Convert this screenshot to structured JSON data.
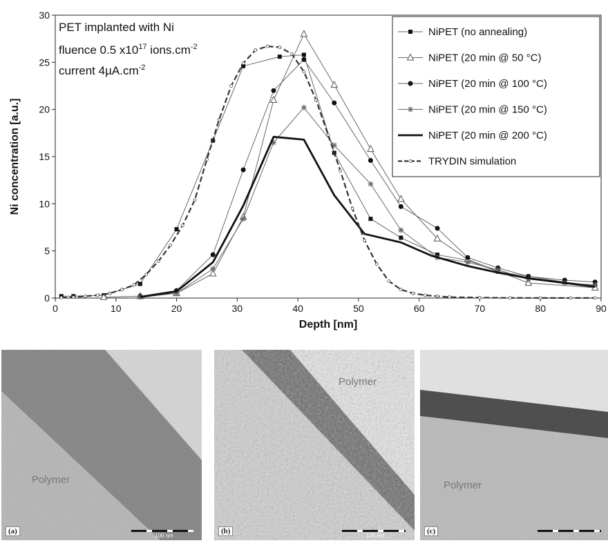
{
  "chart_data": {
    "type": "line",
    "xlabel": "Depth [nm]",
    "ylabel": "Ni concentration [a.u.]",
    "xlim": [
      0,
      90
    ],
    "ylim": [
      0,
      30
    ],
    "xticks": [
      "0",
      "10",
      "20",
      "30",
      "40",
      "50",
      "60",
      "70",
      "80",
      "90"
    ],
    "yticks": [
      "0",
      "5",
      "10",
      "15",
      "20",
      "25",
      "30"
    ],
    "grid": false,
    "legend_position": "top-right",
    "annotation": {
      "line1": "PET implanted with Ni",
      "line2_prefix": "fluence 0.5 x10",
      "line2_sup": "17",
      "line2_suffix": " ions.cm",
      "line2_sup2": "-2",
      "line3_prefix": "current 4",
      "line3_mu": "µ",
      "line3_suffix": "A.cm",
      "line3_sup": "-2"
    },
    "series": [
      {
        "name": "NiPET (no annealing)",
        "marker": "square",
        "style": "thin",
        "x": [
          1,
          3,
          8,
          14,
          20,
          26,
          31,
          37,
          41,
          46,
          52,
          57,
          63,
          68,
          73,
          78,
          84,
          89
        ],
        "y": [
          0.2,
          0.2,
          0.3,
          1.5,
          7.3,
          16.7,
          24.6,
          25.6,
          25.8,
          15.4,
          8.4,
          6.4,
          4.6,
          4.0,
          2.8,
          2.3,
          1.7,
          1.3
        ]
      },
      {
        "name": "NiPET (20 min @ 50 °C)",
        "marker": "triangle",
        "style": "thin",
        "x": [
          8,
          14,
          20,
          26,
          31,
          36,
          41,
          46,
          52,
          57,
          63,
          68,
          78,
          89
        ],
        "y": [
          0.1,
          0.2,
          0.5,
          2.6,
          8.6,
          21.0,
          28.0,
          22.6,
          15.8,
          10.5,
          6.3,
          4.1,
          1.6,
          1.1
        ]
      },
      {
        "name": "NiPET (20 min @ 100 °C)",
        "marker": "circle",
        "style": "thin",
        "x": [
          14,
          20,
          26,
          31,
          36,
          41,
          46,
          52,
          57,
          63,
          68,
          73,
          78,
          84,
          89
        ],
        "y": [
          0.2,
          0.8,
          4.6,
          13.6,
          22.0,
          25.3,
          20.7,
          14.6,
          9.7,
          7.4,
          4.3,
          3.2,
          2.3,
          1.9,
          1.7
        ]
      },
      {
        "name": "NiPET (20 min @ 150 °C)",
        "marker": "star",
        "style": "thin",
        "x": [
          14,
          20,
          26,
          31,
          36,
          41,
          46,
          52,
          57,
          63,
          68,
          73,
          78,
          84,
          89
        ],
        "y": [
          0.1,
          0.5,
          3.1,
          8.4,
          16.5,
          20.2,
          16.2,
          12.1,
          7.2,
          4.3,
          3.8,
          3.0,
          2.0,
          1.6,
          1.4
        ]
      },
      {
        "name": "NiPET (20 min @ 200 °C)",
        "marker": "none",
        "style": "thick",
        "x": [
          14,
          20,
          26,
          31,
          36,
          41,
          46,
          51,
          57,
          62,
          68,
          73,
          78,
          84,
          89
        ],
        "y": [
          0.1,
          0.7,
          3.8,
          9.8,
          17.1,
          16.8,
          10.9,
          6.8,
          5.9,
          4.5,
          3.4,
          2.7,
          2.1,
          1.6,
          1.2
        ]
      },
      {
        "name": "TRYDIN simulation",
        "marker": "small-circle",
        "style": "dashed",
        "x": [
          1,
          3,
          5,
          7,
          9,
          11,
          13,
          15,
          17,
          19,
          21,
          23,
          25,
          27,
          29,
          31,
          33,
          35,
          37,
          39,
          41,
          43,
          45,
          47,
          49,
          51,
          53,
          55,
          57,
          59,
          61,
          63,
          65,
          70,
          75,
          80,
          85,
          89
        ],
        "y": [
          0.05,
          0.1,
          0.2,
          0.3,
          0.5,
          0.9,
          1.4,
          2.5,
          3.9,
          5.6,
          7.7,
          10.4,
          14.7,
          18.9,
          22.5,
          24.9,
          26.3,
          26.7,
          26.6,
          25.9,
          24.0,
          21.0,
          17.3,
          13.5,
          9.5,
          6.1,
          3.6,
          1.8,
          0.9,
          0.5,
          0.3,
          0.2,
          0.1,
          0.05,
          0.02,
          0.01,
          0.01,
          0.01
        ]
      }
    ]
  },
  "tem_panels": [
    {
      "letter": "(a)",
      "polymer_label": "Polymer",
      "scale_text": "100 nm"
    },
    {
      "letter": "(b)",
      "polymer_label": "Polymer",
      "scale_text": "100 nm"
    },
    {
      "letter": "(c)",
      "polymer_label": "Polymer",
      "scale_text": ""
    }
  ]
}
